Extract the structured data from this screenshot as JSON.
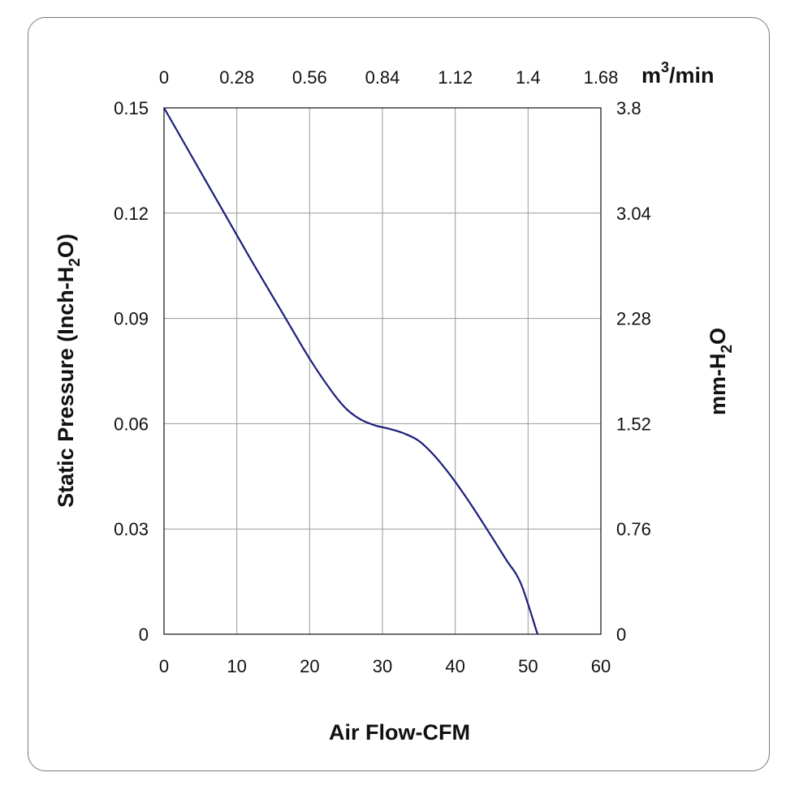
{
  "chart_data": {
    "type": "line",
    "x_axis": {
      "label": "Air Flow-CFM",
      "range": [
        0,
        60
      ],
      "ticks": [
        "0",
        "10",
        "20",
        "30",
        "40",
        "50",
        "60"
      ]
    },
    "x2_axis": {
      "label_base": "m",
      "label_sup": "3",
      "label_tail": "/min",
      "range": [
        0,
        1.68
      ],
      "ticks": [
        "0",
        "0.28",
        "0.56",
        "0.84",
        "1.12",
        "1.4",
        "1.68"
      ]
    },
    "y_axis": {
      "label_pre": "Static Pressure (Inch-H",
      "label_sub": "2",
      "label_post": "O)",
      "range": [
        0,
        0.15
      ],
      "ticks": [
        "0",
        "0.03",
        "0.06",
        "0.09",
        "0.12",
        "0.15"
      ]
    },
    "y2_axis": {
      "label_pre": "mm-H",
      "label_sub": "2",
      "label_post": "O",
      "range": [
        0,
        3.8
      ],
      "ticks": [
        "0",
        "0.76",
        "1.52",
        "2.28",
        "3.04",
        "3.8"
      ]
    },
    "grid": true,
    "series": [
      {
        "color": "#1c1c7c",
        "x": [
          0,
          4,
          8,
          12,
          16,
          20,
          23,
          25,
          27,
          29,
          31,
          33,
          35,
          37,
          39,
          41,
          43,
          45,
          47,
          49,
          51.3
        ],
        "y": [
          0.15,
          0.1355,
          0.121,
          0.1065,
          0.0925,
          0.0785,
          0.0693,
          0.0643,
          0.0612,
          0.0595,
          0.0585,
          0.0572,
          0.0551,
          0.0512,
          0.0462,
          0.0405,
          0.0343,
          0.0278,
          0.0212,
          0.0145,
          0.0
        ]
      }
    ]
  }
}
